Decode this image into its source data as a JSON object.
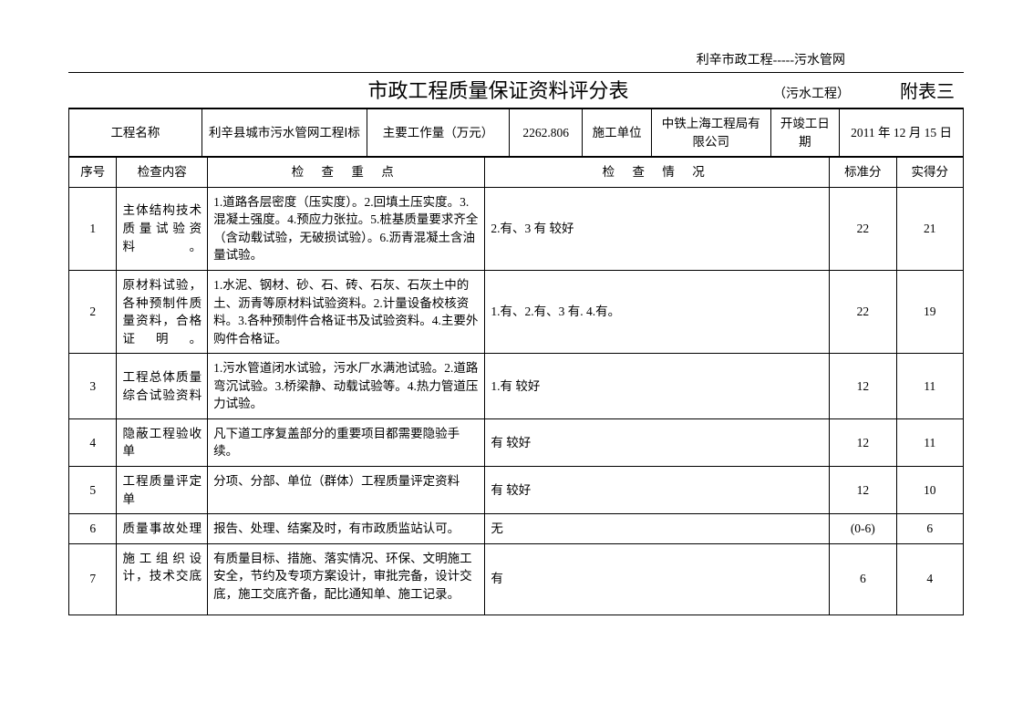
{
  "header_text": "利辛市政工程-----污水管网",
  "title": "市政工程质量保证资料评分表",
  "title_note": "（污水工程）",
  "title_appendix": "附表三",
  "info": {
    "project_name_label": "工程名称",
    "project_name_value": "利辛县城市污水管网工程Ⅰ标",
    "workload_label": "主要工作量（万元）",
    "workload_value": "2262.806",
    "construct_unit_label": "施工单位",
    "construct_unit_value": "中铁上海工程局有限公司",
    "date_label": "开竣工日期",
    "date_value": "2011 年 12 月 15 日"
  },
  "columns": {
    "seq": "序号",
    "content": "检查内容",
    "focus": "检 查 重 点",
    "situation": "检 查 情 况",
    "standard": "标准分",
    "actual": "实得分"
  },
  "rows": [
    {
      "seq": "1",
      "content": "主体结构技术质量试验资料。",
      "focus": "1.道路各层密度（压实度）。2.回填土压实度。3.混凝土强度。4.预应力张拉。5.桩基质量要求齐全（含动载试验，无破损试验）。6.沥青混凝土含油量试验。",
      "situation": "2.有、3 有   较好",
      "standard": "22",
      "actual": "21"
    },
    {
      "seq": "2",
      "content": "原材料试验，各种预制件质量资料，合格证明。",
      "focus": "1.水泥、钢材、砂、石、砖、石灰、石灰土中的土、沥青等原材料试验资料。2.计量设备校核资料。3.各种预制件合格证书及试验资料。4.主要外购件合格证。",
      "situation": "1.有、2.有、3 有. 4.有。",
      "standard": "22",
      "actual": "19"
    },
    {
      "seq": "3",
      "content": "工程总体质量综合试验资料",
      "focus": "1.污水管道闭水试验，污水厂水满池试验。2.道路弯沉试验。3.桥梁静、动载试验等。4.热力管道压力试验。",
      "situation": "1.有   较好",
      "standard": "12",
      "actual": "11"
    },
    {
      "seq": "4",
      "content": "隐蔽工程验收单",
      "focus": "凡下道工序复盖部分的重要项目都需要隐验手续。",
      "situation": "  有   较好",
      "standard": "12",
      "actual": "11"
    },
    {
      "seq": "5",
      "content": "工程质量评定单",
      "focus": "分项、分部、单位（群体）工程质量评定资料",
      "situation": "  有   较好",
      "standard": "12",
      "actual": "10"
    },
    {
      "seq": "6",
      "content": "质量事故处理",
      "focus": "报告、处理、结案及时，有市政质监站认可。",
      "situation": "无",
      "standard": "(0-6)",
      "actual": "6"
    },
    {
      "seq": "7",
      "content": "施工组织设计，技术交底",
      "focus": "有质量目标、措施、落实情况、环保、文明施工安全，节约及专项方案设计，审批完备，设计交底，施工交底齐备，配比通知单、施工记录。",
      "situation": "  有",
      "standard": "6",
      "actual": "4"
    }
  ]
}
